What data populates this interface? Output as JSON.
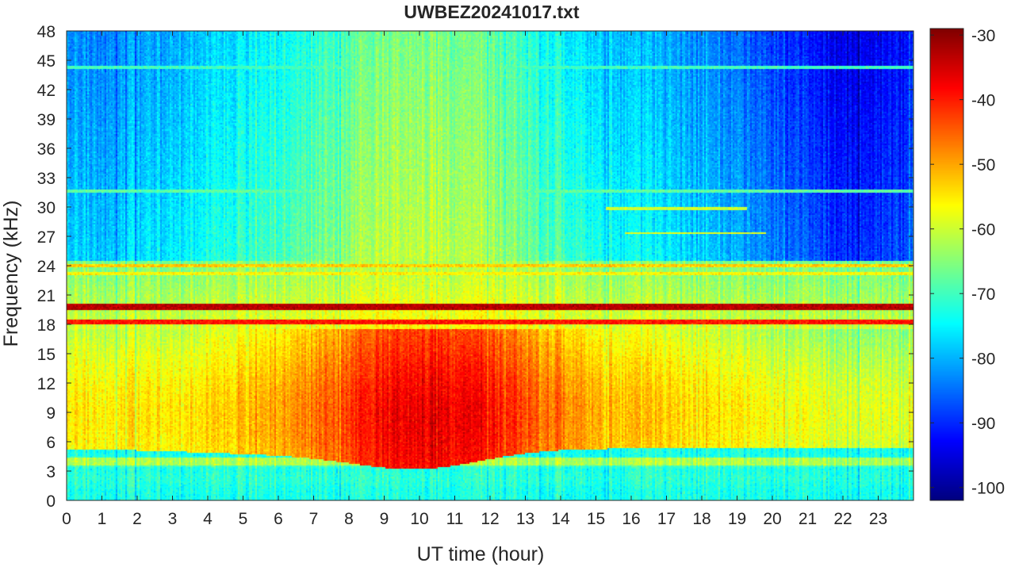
{
  "chart_data": {
    "type": "heatmap",
    "title": "UWBEZ20241017.txt",
    "xlabel": "UT time (hour)",
    "ylabel": "Frequency (kHz)",
    "xlim": [
      0,
      24
    ],
    "ylim": [
      0,
      48
    ],
    "x_ticks": [
      0,
      1,
      2,
      3,
      4,
      5,
      6,
      7,
      8,
      9,
      10,
      11,
      12,
      13,
      14,
      15,
      16,
      17,
      18,
      19,
      20,
      21,
      22,
      23
    ],
    "y_ticks": [
      0,
      3,
      6,
      9,
      12,
      15,
      18,
      21,
      24,
      27,
      30,
      33,
      36,
      39,
      42,
      45,
      48
    ],
    "colorbar": {
      "colormap": "jet",
      "range": [
        -102,
        -29
      ],
      "ticks": [
        -100,
        -90,
        -80,
        -70,
        -60,
        -50,
        -40,
        -30
      ]
    },
    "grid": false,
    "dominant_features": {
      "strong_lines_khz": [
        19.8,
        18.3
      ],
      "peak_power_region": {
        "hours": [
          6,
          14
        ],
        "freq_khz": [
          3.5,
          15
        ],
        "level_db": -44
      }
    },
    "x_tick_labels": [
      "0",
      "1",
      "2",
      "3",
      "4",
      "5",
      "6",
      "7",
      "8",
      "9",
      "10",
      "11",
      "12",
      "13",
      "14",
      "15",
      "16",
      "17",
      "18",
      "19",
      "20",
      "21",
      "22",
      "23"
    ],
    "y_tick_labels": [
      "0",
      "3",
      "6",
      "9",
      "12",
      "15",
      "18",
      "21",
      "24",
      "27",
      "30",
      "33",
      "36",
      "39",
      "42",
      "45",
      "48"
    ],
    "colorbar_tick_labels": [
      "-100",
      "-90",
      "-80",
      "-70",
      "-60",
      "-50",
      "-40",
      "-30"
    ]
  }
}
